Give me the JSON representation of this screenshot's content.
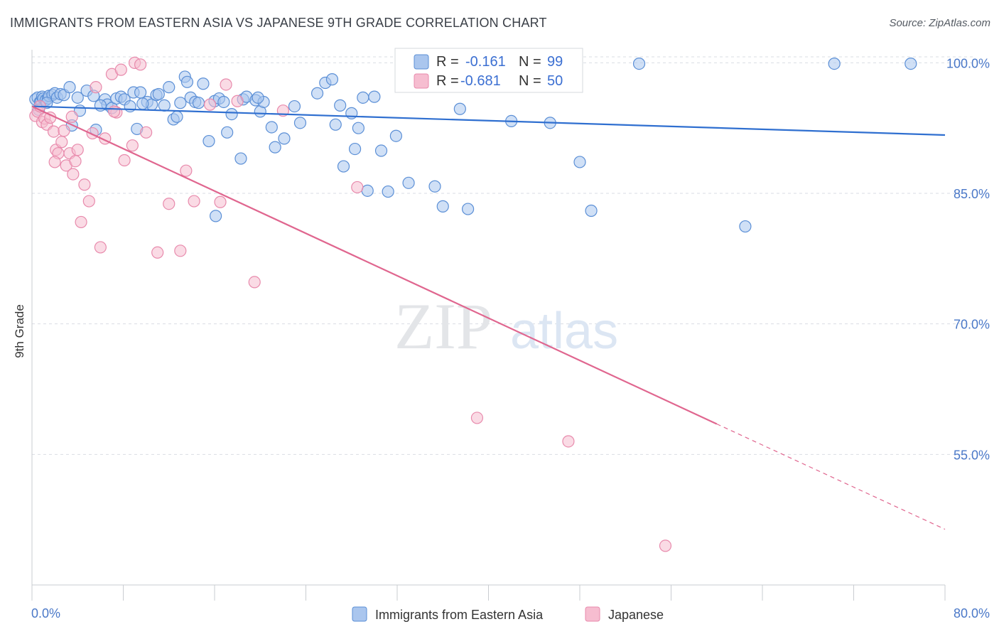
{
  "header": {
    "title": "IMMIGRANTS FROM EASTERN ASIA VS JAPANESE 9TH GRADE CORRELATION CHART",
    "source": "Source: ZipAtlas.com"
  },
  "watermark": {
    "zip": "ZIP",
    "atlas": "atlas"
  },
  "colors": {
    "blue_fill": "#aac6ee",
    "blue_stroke": "#5b8fd6",
    "blue_line": "#2f6fd0",
    "pink_fill": "#f6bdd0",
    "pink_stroke": "#e88aac",
    "pink_line": "#e0668f",
    "grid": "#d9dde3",
    "tick_label": "#4a78c8"
  },
  "legend": {
    "rows": [
      {
        "r_label": "R =",
        "r_value": "-0.161",
        "n_label": "N =",
        "n_value": "99"
      },
      {
        "r_label": "R =",
        "r_value": "-0.681",
        "n_label": "N =",
        "n_value": "50"
      }
    ]
  },
  "bottom_legend": {
    "items": [
      "Immigrants from Eastern Asia",
      "Japanese"
    ]
  },
  "chart_data": {
    "type": "scatter",
    "title": "IMMIGRANTS FROM EASTERN ASIA VS JAPANESE 9TH GRADE CORRELATION CHART",
    "xlabel": "",
    "ylabel": "9th Grade",
    "xlim": [
      0,
      80
    ],
    "ylim": [
      40,
      101.5
    ],
    "x_tick_labels": [
      "0.0%",
      "80.0%"
    ],
    "y_ticks": [
      55,
      70,
      85,
      100
    ],
    "y_tick_labels": [
      "55.0%",
      "70.0%",
      "85.0%",
      "100.0%"
    ],
    "grid": true,
    "legend_position": "top-center",
    "series": [
      {
        "name": "Immigrants from Eastern Asia",
        "R": -0.161,
        "N": 99,
        "trend": {
          "x": [
            0,
            80
          ],
          "y": [
            95.0,
            91.7
          ]
        },
        "points": [
          [
            0.3,
            95.8
          ],
          [
            0.5,
            96.0
          ],
          [
            0.7,
            95.5
          ],
          [
            0.8,
            95.6
          ],
          [
            0.9,
            96.1
          ],
          [
            1.0,
            95.9
          ],
          [
            1.2,
            95.7
          ],
          [
            1.4,
            95.9
          ],
          [
            1.5,
            96.2
          ],
          [
            1.8,
            96.3
          ],
          [
            2.0,
            96.5
          ],
          [
            2.2,
            96.0
          ],
          [
            2.5,
            96.4
          ],
          [
            2.8,
            96.3
          ],
          [
            3.3,
            97.2
          ],
          [
            3.5,
            92.8
          ],
          [
            4.0,
            96.0
          ],
          [
            4.2,
            94.5
          ],
          [
            4.8,
            96.8
          ],
          [
            5.4,
            96.2
          ],
          [
            5.6,
            92.3
          ],
          [
            6.4,
            95.8
          ],
          [
            6.6,
            95.2
          ],
          [
            7.0,
            94.8
          ],
          [
            7.4,
            95.9
          ],
          [
            7.8,
            96.1
          ],
          [
            8.1,
            95.8
          ],
          [
            8.6,
            95.0
          ],
          [
            8.9,
            96.6
          ],
          [
            9.2,
            92.4
          ],
          [
            9.5,
            96.6
          ],
          [
            10.1,
            95.5
          ],
          [
            10.5,
            95.2
          ],
          [
            10.9,
            96.3
          ],
          [
            11.1,
            96.4
          ],
          [
            11.6,
            95.1
          ],
          [
            12.0,
            97.2
          ],
          [
            12.4,
            93.5
          ],
          [
            12.7,
            93.8
          ],
          [
            13.0,
            95.4
          ],
          [
            13.4,
            98.4
          ],
          [
            13.6,
            97.8
          ],
          [
            13.9,
            96.0
          ],
          [
            14.3,
            95.5
          ],
          [
            14.6,
            95.4
          ],
          [
            15.0,
            97.6
          ],
          [
            15.5,
            91.0
          ],
          [
            16.0,
            95.6
          ],
          [
            16.4,
            95.9
          ],
          [
            16.8,
            95.5
          ],
          [
            17.1,
            92.0
          ],
          [
            17.5,
            94.1
          ],
          [
            18.3,
            89.0
          ],
          [
            18.5,
            95.8
          ],
          [
            18.8,
            96.1
          ],
          [
            19.6,
            95.7
          ],
          [
            20.0,
            94.4
          ],
          [
            20.3,
            95.5
          ],
          [
            21.0,
            92.6
          ],
          [
            21.3,
            90.3
          ],
          [
            22.1,
            91.3
          ],
          [
            23.0,
            95.0
          ],
          [
            23.5,
            93.1
          ],
          [
            25.7,
            97.7
          ],
          [
            26.6,
            92.9
          ],
          [
            27.0,
            95.1
          ],
          [
            27.3,
            88.1
          ],
          [
            28.0,
            94.2
          ],
          [
            28.3,
            90.1
          ],
          [
            28.6,
            92.5
          ],
          [
            29.0,
            96.0
          ],
          [
            29.4,
            85.3
          ],
          [
            30.0,
            96.1
          ],
          [
            30.6,
            89.9
          ],
          [
            31.2,
            85.2
          ],
          [
            31.9,
            91.6
          ],
          [
            33.0,
            86.2
          ],
          [
            34.2,
            99.9
          ],
          [
            35.3,
            85.8
          ],
          [
            36.0,
            83.5
          ],
          [
            37.5,
            94.7
          ],
          [
            38.2,
            83.2
          ],
          [
            42.0,
            93.3
          ],
          [
            44.0,
            99.9
          ],
          [
            45.4,
            93.1
          ],
          [
            48.0,
            88.6
          ],
          [
            49.0,
            83.0
          ],
          [
            53.2,
            99.9
          ],
          [
            62.5,
            81.2
          ],
          [
            70.3,
            99.9
          ],
          [
            77.0,
            99.9
          ],
          [
            0.6,
            94.6
          ],
          [
            1.3,
            95.4
          ],
          [
            6.0,
            95.1
          ],
          [
            9.7,
            95.3
          ],
          [
            16.1,
            82.4
          ],
          [
            19.8,
            96.0
          ],
          [
            25.0,
            96.5
          ],
          [
            26.3,
            98.1
          ]
        ]
      },
      {
        "name": "Japanese",
        "R": -0.681,
        "N": 50,
        "trend": {
          "x": [
            0,
            60
          ],
          "y": [
            95.0,
            58.5
          ]
        },
        "trend_dashed": {
          "x": [
            60,
            80
          ],
          "y": [
            58.5,
            46.4
          ]
        },
        "points": [
          [
            0.3,
            93.9
          ],
          [
            0.5,
            94.4
          ],
          [
            0.7,
            95.0
          ],
          [
            0.9,
            93.2
          ],
          [
            1.1,
            93.6
          ],
          [
            1.3,
            92.9
          ],
          [
            1.6,
            93.7
          ],
          [
            1.9,
            92.1
          ],
          [
            2.1,
            90.0
          ],
          [
            2.3,
            89.6
          ],
          [
            2.6,
            90.9
          ],
          [
            2.8,
            92.2
          ],
          [
            3.0,
            88.2
          ],
          [
            3.3,
            89.6
          ],
          [
            3.6,
            87.2
          ],
          [
            3.8,
            88.7
          ],
          [
            4.0,
            90.0
          ],
          [
            4.3,
            81.7
          ],
          [
            4.6,
            86.0
          ],
          [
            5.0,
            84.1
          ],
          [
            5.3,
            91.9
          ],
          [
            5.6,
            97.2
          ],
          [
            6.0,
            78.8
          ],
          [
            6.4,
            91.3
          ],
          [
            7.0,
            98.7
          ],
          [
            7.4,
            94.3
          ],
          [
            7.8,
            99.2
          ],
          [
            8.1,
            88.8
          ],
          [
            8.8,
            90.5
          ],
          [
            9.0,
            100.0
          ],
          [
            10.0,
            92.0
          ],
          [
            11.0,
            78.2
          ],
          [
            12.0,
            83.8
          ],
          [
            13.0,
            78.4
          ],
          [
            13.5,
            87.6
          ],
          [
            14.2,
            84.1
          ],
          [
            15.6,
            95.2
          ],
          [
            16.5,
            84.0
          ],
          [
            17.0,
            97.5
          ],
          [
            18.0,
            95.6
          ],
          [
            19.5,
            74.8
          ],
          [
            22.0,
            94.5
          ],
          [
            28.5,
            85.7
          ],
          [
            39.0,
            59.2
          ],
          [
            47.0,
            56.5
          ],
          [
            55.5,
            44.5
          ],
          [
            7.2,
            94.4
          ],
          [
            3.5,
            93.8
          ],
          [
            2.0,
            88.6
          ],
          [
            9.5,
            99.8
          ]
        ]
      }
    ]
  }
}
